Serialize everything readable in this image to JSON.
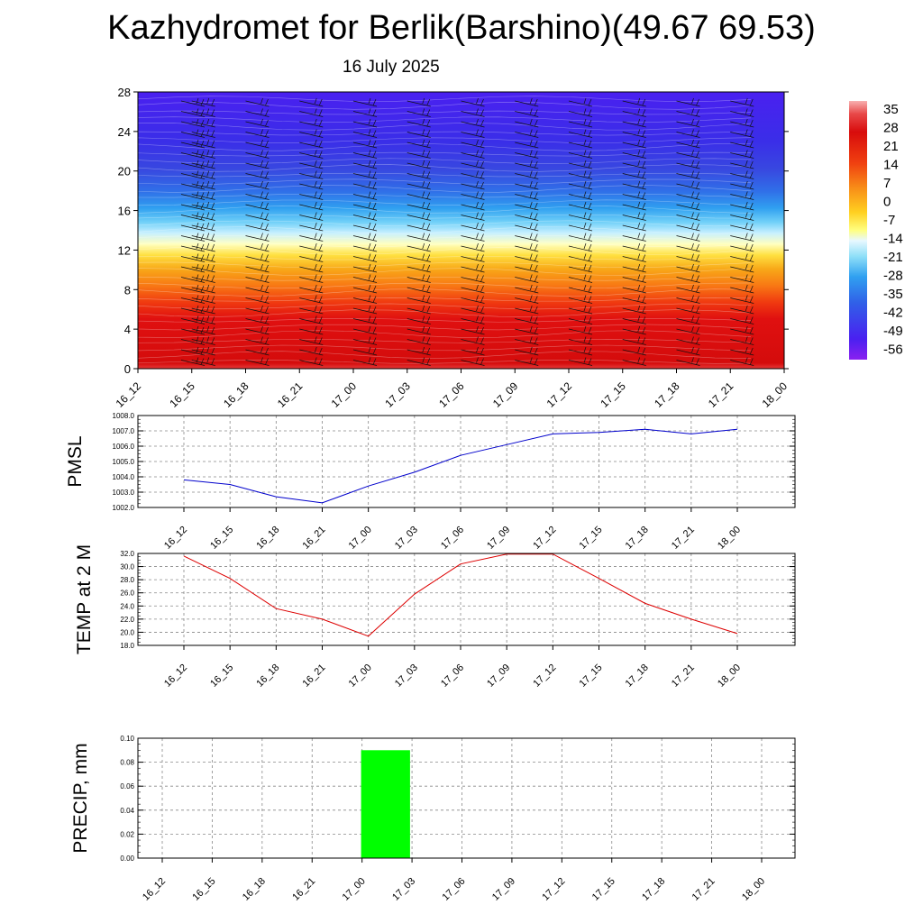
{
  "title": "Kazhydromet for Berlik(Barshino)(49.67 69.53)",
  "subtitle": "16 July 2025",
  "colors": {
    "pmsl_line": "#0000cc",
    "temp_line": "#dd0000",
    "precip_bar": "#00ff00",
    "grid": "#888888"
  },
  "chart_data": [
    {
      "type": "heatmap",
      "y_ticks": [
        "0",
        "4",
        "8",
        "12",
        "16",
        "20",
        "24",
        "28"
      ],
      "ylim": [
        0,
        28
      ],
      "x_ticks": [
        "16_12",
        "16_15",
        "16_18",
        "16_21",
        "17_00",
        "17_03",
        "17_06",
        "17_09",
        "17_12",
        "17_15",
        "17_18",
        "17_21",
        "18_00"
      ],
      "colorbar_ticks": [
        "35",
        "28",
        "21",
        "14",
        "7",
        "0",
        "-7",
        "-14",
        "-21",
        "-28",
        "-35",
        "-42",
        "-49",
        "-56"
      ],
      "colorbar_range": [
        -60,
        38
      ],
      "overlay": "wind barbs"
    },
    {
      "type": "line",
      "ylabel": "PMSL",
      "x": [
        "16_12",
        "16_15",
        "16_18",
        "16_21",
        "17_00",
        "17_03",
        "17_06",
        "17_09",
        "17_12",
        "17_15",
        "17_18",
        "17_21",
        "18_00"
      ],
      "values": [
        1003.8,
        1003.5,
        1002.7,
        1002.3,
        1003.4,
        1004.3,
        1005.4,
        1006.1,
        1006.8,
        1006.9,
        1007.1,
        1006.8,
        1007.1
      ],
      "ylim": [
        1002.0,
        1008.0
      ],
      "y_ticks": [
        "1002.0",
        "1003.0",
        "1004.0",
        "1005.0",
        "1006.0",
        "1007.0",
        "1008.0"
      ],
      "grid": true
    },
    {
      "type": "line",
      "ylabel": "TEMP at 2 M",
      "x": [
        "16_12",
        "16_15",
        "16_18",
        "16_21",
        "17_00",
        "17_03",
        "17_06",
        "17_09",
        "17_12",
        "17_15",
        "17_18",
        "17_21",
        "18_00"
      ],
      "values": [
        31.6,
        28.2,
        23.6,
        22.0,
        19.4,
        25.8,
        30.4,
        31.9,
        31.9,
        28.2,
        24.4,
        22.0,
        19.8
      ],
      "ylim": [
        18.0,
        32.0
      ],
      "y_ticks": [
        "18.0",
        "20.0",
        "22.0",
        "24.0",
        "26.0",
        "28.0",
        "30.0",
        "32.0"
      ],
      "grid": true
    },
    {
      "type": "bar",
      "ylabel": "PRECIP, mm",
      "categories": [
        "16_12",
        "16_15",
        "16_18",
        "16_21",
        "17_00",
        "17_03",
        "17_06",
        "17_09",
        "17_12",
        "17_15",
        "17_18",
        "17_21",
        "18_00"
      ],
      "values": [
        0,
        0,
        0,
        0,
        0.09,
        0,
        0,
        0,
        0,
        0,
        0,
        0,
        0
      ],
      "ylim": [
        0,
        0.1
      ],
      "y_ticks": [
        "0.00",
        "0.02",
        "0.04",
        "0.06",
        "0.08",
        "0.10"
      ],
      "grid": true
    }
  ]
}
